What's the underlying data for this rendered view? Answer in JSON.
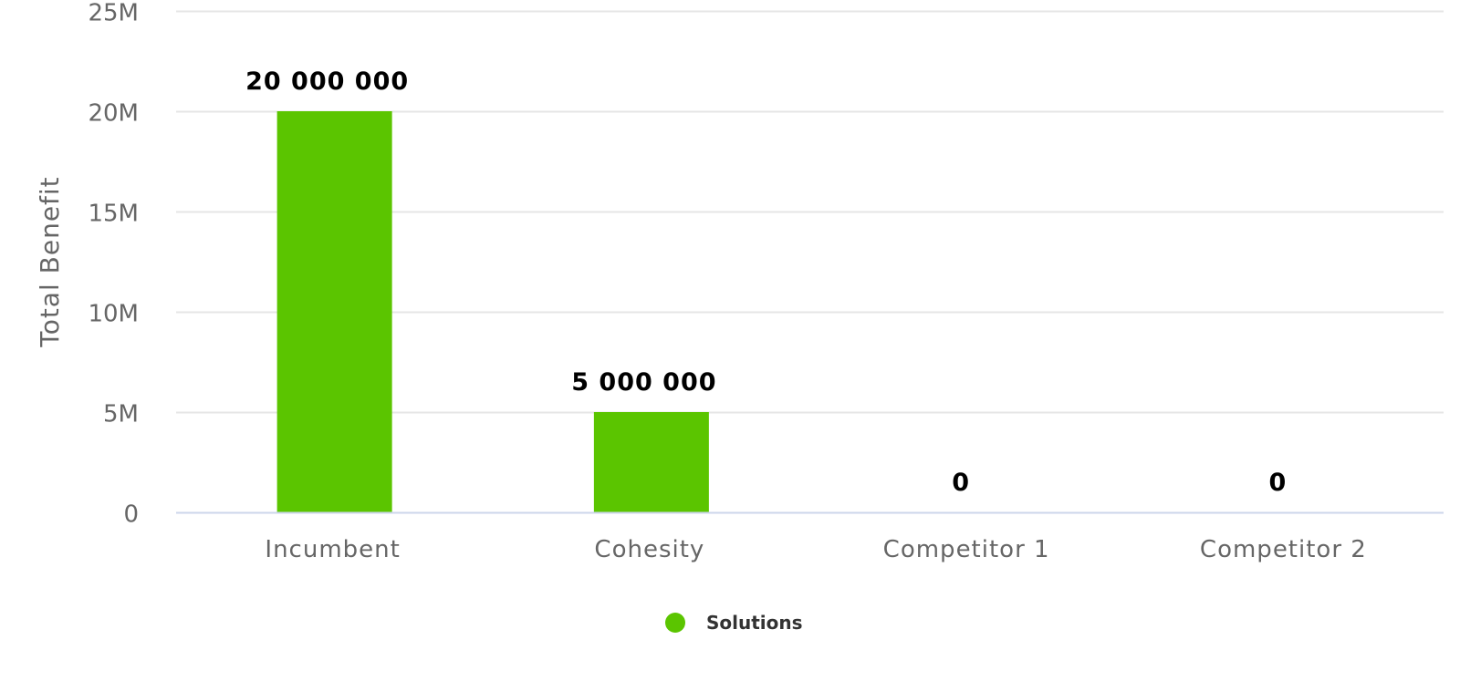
{
  "chart_data": {
    "type": "bar",
    "categories": [
      "Incumbent",
      "Cohesity",
      "Competitor 1",
      "Competitor 2"
    ],
    "series": [
      {
        "name": "Solutions",
        "values": [
          20000000,
          5000000,
          0,
          0
        ],
        "data_labels": [
          "20 000 000",
          "5 000 000",
          "0",
          "0"
        ],
        "color": "#5bc500"
      }
    ],
    "title": "",
    "xlabel": "",
    "ylabel": "Total Benefit",
    "ylim": [
      0,
      25000000
    ],
    "y_ticks": [
      0,
      5000000,
      10000000,
      15000000,
      20000000,
      25000000
    ],
    "y_tick_labels": [
      "0",
      "5M",
      "10M",
      "15M",
      "20M",
      "25M"
    ],
    "grid": true,
    "legend_position": "bottom-center",
    "colors": {
      "gridline": "#e6e6e6",
      "axis_line": "#ccd6eb"
    }
  }
}
